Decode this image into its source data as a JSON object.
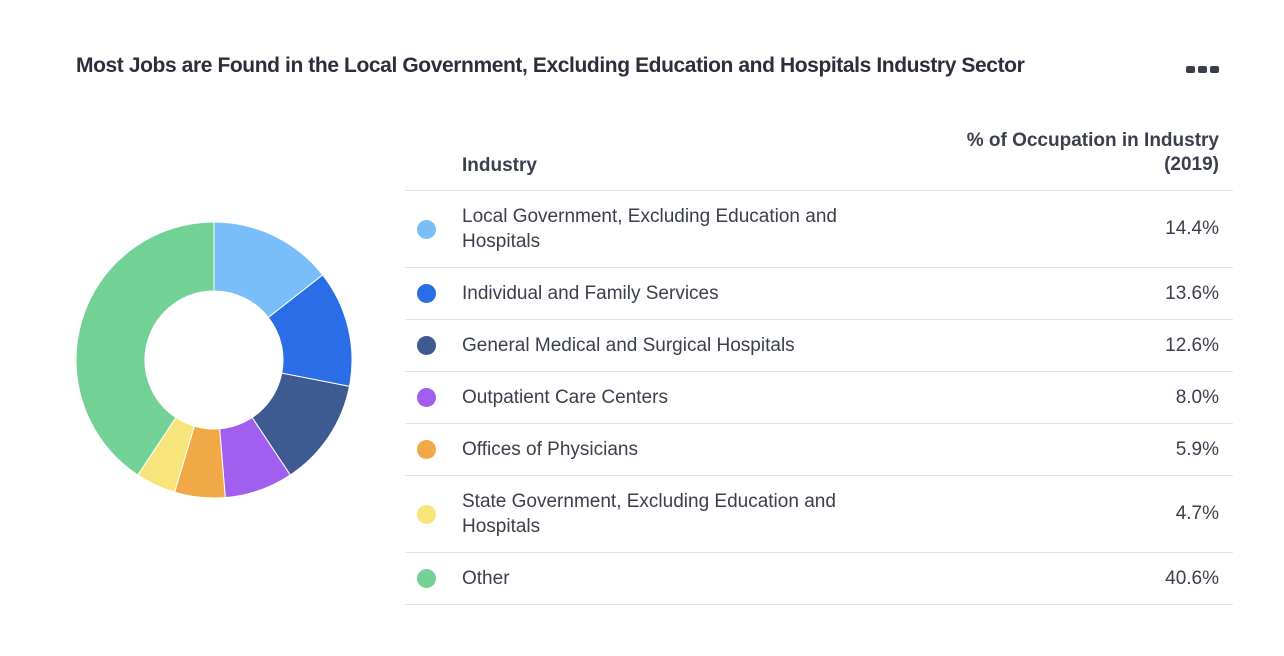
{
  "header": {
    "title": "Most Jobs are Found in the Local Government, Excluding Education and Hospitals Industry Sector",
    "menu_icon": "more-horizontal-icon"
  },
  "table": {
    "col_industry": "Industry",
    "col_percent_line1": "% of Occupation in Industry",
    "col_percent_line2": "(2019)"
  },
  "chart_data": {
    "type": "pie",
    "variant": "donut",
    "categories": [
      "Local Government, Excluding Education and Hospitals",
      "Individual and Family Services",
      "General Medical and Surgical Hospitals",
      "Outpatient Care Centers",
      "Offices of Physicians",
      "State Government, Excluding Education and Hospitals",
      "Other"
    ],
    "values": [
      14.4,
      13.6,
      12.6,
      8.0,
      5.9,
      4.7,
      40.6
    ],
    "labels": [
      "14.4%",
      "13.6%",
      "12.6%",
      "8.0%",
      "5.9%",
      "4.7%",
      "40.6%"
    ],
    "colors": [
      "#79bef8",
      "#2a6de6",
      "#3e5a91",
      "#a15ff0",
      "#f0a946",
      "#f7e47b",
      "#72d195"
    ],
    "title": "Most Jobs are Found in the Local Government, Excluding Education and Hospitals Industry Sector",
    "legend": "right"
  }
}
